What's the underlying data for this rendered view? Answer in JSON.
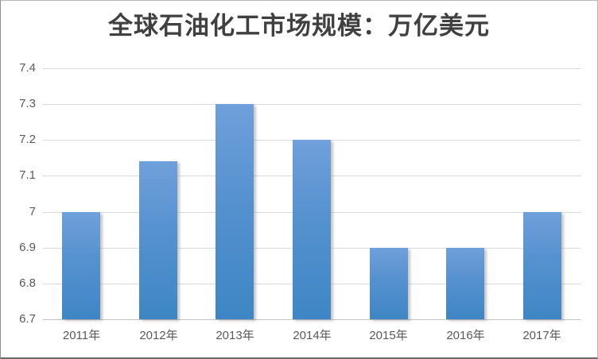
{
  "chart_data": {
    "type": "bar",
    "title": "全球石油化工市场规模：万亿美元",
    "categories": [
      "2011年",
      "2012年",
      "2013年",
      "2014年",
      "2015年",
      "2016年",
      "2017年"
    ],
    "values": [
      7.0,
      7.14,
      7.3,
      7.2,
      6.9,
      6.9,
      7.0
    ],
    "y_ticks": [
      6.7,
      6.8,
      6.9,
      7,
      7.1,
      7.2,
      7.3,
      7.4
    ],
    "ylim": [
      6.7,
      7.4
    ],
    "xlabel": "",
    "ylabel": "",
    "grid": "horizontal",
    "legend_position": "none",
    "colors": {
      "bar_gradient_top": "#6fa0db",
      "bar_gradient_bottom": "#3e86c5",
      "gridline": "#d9d9d9",
      "axis_line": "#c3c3c3",
      "title_text": "#404040",
      "axis_text": "#595959",
      "background": "#ffffff",
      "frame_border": "#8f8f8f"
    }
  }
}
